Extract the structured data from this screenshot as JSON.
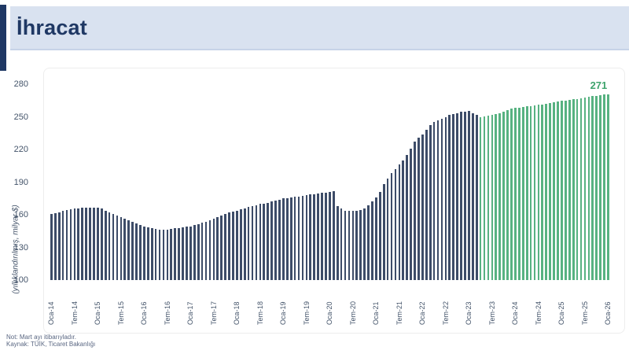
{
  "header": {
    "title": "İhracat"
  },
  "footnotes": {
    "line1": "Not: Mart ayı itibarıyladır.",
    "line2": "Kaynak: TÜİK, Ticaret Bakanlığı"
  },
  "colors": {
    "accent_navy": "#1f3864",
    "header_background": "#d9e2f0",
    "axis_text": "#44546a",
    "bar_actual": "#3d4c68",
    "bar_forecast": "#57b281",
    "end_label_green": "#3fa46d"
  },
  "chart_data": {
    "type": "bar",
    "title": "İhracat",
    "ylabel": "(yıllıklandırılmış, milyar $)",
    "ylim": [
      100,
      280
    ],
    "yticks": [
      280,
      250,
      220,
      190,
      160,
      130,
      100
    ],
    "grid": "off",
    "legend": "off",
    "x_start": "Oca-14",
    "x_end": "Oca-26",
    "x_tick_every_months": 6,
    "x_tick_labels": [
      "Oca-14",
      "Tem-14",
      "Oca-15",
      "Tem-15",
      "Oca-16",
      "Tem-16",
      "Oca-17",
      "Tem-17",
      "Oca-18",
      "Tem-18",
      "Oca-19",
      "Tem-19",
      "Oca-20",
      "Tem-20",
      "Oca-21",
      "Tem-21",
      "Oca-22",
      "Tem-22",
      "Oca-23",
      "Tem-23",
      "Oca-24",
      "Tem-24",
      "Oca-25",
      "Tem-25",
      "Oca-26"
    ],
    "end_label": "271",
    "values_actual": [
      160.5,
      161.5,
      162.5,
      163.5,
      164.5,
      165,
      165.5,
      166,
      166.5,
      166.5,
      166.5,
      166.5,
      166.5,
      165.5,
      164,
      162.5,
      161,
      159.5,
      158,
      156.5,
      155,
      153.5,
      152,
      150.5,
      149.5,
      148.5,
      147.5,
      147,
      146.5,
      146.5,
      146.5,
      147,
      147.5,
      148,
      148.5,
      149,
      149.5,
      150.5,
      151.5,
      152.5,
      153.5,
      155,
      156.5,
      158,
      159.5,
      161,
      162,
      163,
      164,
      165,
      166,
      167,
      168,
      169,
      170,
      170.5,
      171,
      172,
      173,
      174,
      175,
      175.5,
      176,
      176.5,
      177,
      177.5,
      178,
      178.5,
      179,
      179.5,
      180,
      180.5,
      181,
      181.5,
      168,
      165.5,
      164,
      163.5,
      163.5,
      164,
      164.5,
      165.5,
      169,
      172,
      176,
      181,
      188,
      193,
      198,
      202,
      206,
      210,
      215,
      221,
      227,
      231,
      234,
      238,
      242.5,
      245,
      247,
      248.5,
      250,
      251.5,
      252.5,
      253.5,
      254.5,
      255,
      255.5,
      253,
      251.5
    ],
    "values_forecast": [
      250,
      250.5,
      251,
      251.5,
      252.5,
      253.5,
      255,
      256.5,
      257.5,
      258,
      258.5,
      259,
      259.5,
      260,
      260.5,
      261,
      261.5,
      262,
      262.5,
      263.5,
      264,
      264.5,
      265,
      265.5,
      266,
      266.5,
      267,
      268,
      268.5,
      269,
      269.5,
      270,
      270.5,
      271
    ]
  }
}
